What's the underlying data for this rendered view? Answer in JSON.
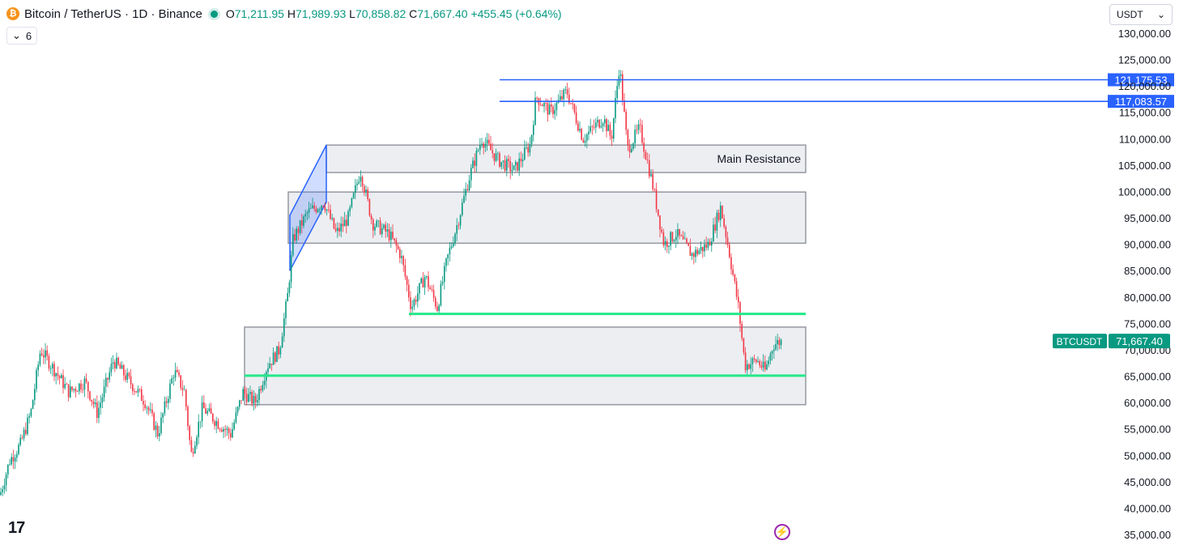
{
  "header": {
    "symbol": "Bitcoin / TetherUS · 1D · Binance",
    "coin_glyph": "₿",
    "open_label": "O",
    "open": "71,211.95",
    "high_label": "H",
    "high": "71,989.93",
    "low_label": "L",
    "low": "70,858.82",
    "close_label": "C",
    "close": "71,667.40",
    "change": "+455.45 (+0.64%)"
  },
  "indicators_toggle": {
    "count": "6"
  },
  "currency_select": {
    "value": "USDT"
  },
  "bolt_glyph": "⚡",
  "tv_logo": "17",
  "colors": {
    "up": "#089981",
    "down": "#f23645",
    "blue_line": "#2962ff",
    "green_line": "#22e88a",
    "zone_fill": "#eceef2",
    "zone_stroke": "#9598a1"
  },
  "chart_data": {
    "type": "candlestick",
    "symbol": "BTCUSDT",
    "interval": "1D",
    "ylim": [
      35000,
      130000
    ],
    "y_ticks": [
      35000,
      40000,
      45000,
      50000,
      55000,
      60000,
      65000,
      70000,
      75000,
      80000,
      85000,
      90000,
      95000,
      100000,
      105000,
      110000,
      115000,
      120000,
      125000,
      130000
    ],
    "y_tick_labels": [
      "35,000.00",
      "40,000.00",
      "45,000.00",
      "50,000.00",
      "55,000.00",
      "60,000.00",
      "65,000.00",
      "70,000.00",
      "75,000.00",
      "80,000.00",
      "85,000.00",
      "90,000.00",
      "95,000.00",
      "100,000.00",
      "105,000.00",
      "110,000.00",
      "115,000.00",
      "120,000.00",
      "125,000.00",
      "130,000.00"
    ],
    "close_path_keypoints": [
      [
        0,
        42500
      ],
      [
        12,
        49000
      ],
      [
        25,
        52000
      ],
      [
        38,
        58000
      ],
      [
        50,
        70000
      ],
      [
        68,
        66000
      ],
      [
        85,
        62000
      ],
      [
        105,
        64000
      ],
      [
        120,
        58000
      ],
      [
        140,
        68000
      ],
      [
        160,
        64000
      ],
      [
        180,
        60000
      ],
      [
        195,
        54000
      ],
      [
        215,
        66000
      ],
      [
        228,
        62000
      ],
      [
        236,
        50000
      ],
      [
        250,
        59000
      ],
      [
        270,
        56000
      ],
      [
        285,
        54000
      ],
      [
        300,
        62000
      ],
      [
        315,
        60000
      ],
      [
        330,
        67000
      ],
      [
        345,
        70000
      ],
      [
        355,
        80000
      ],
      [
        362,
        91000
      ],
      [
        380,
        96000
      ],
      [
        400,
        98000
      ],
      [
        415,
        92000
      ],
      [
        430,
        95000
      ],
      [
        445,
        104000
      ],
      [
        460,
        94000
      ],
      [
        480,
        92000
      ],
      [
        495,
        88000
      ],
      [
        508,
        78000
      ],
      [
        525,
        84000
      ],
      [
        540,
        78000
      ],
      [
        552,
        87000
      ],
      [
        565,
        94000
      ],
      [
        580,
        103000
      ],
      [
        595,
        110000
      ],
      [
        615,
        106000
      ],
      [
        635,
        104000
      ],
      [
        655,
        109000
      ],
      [
        662,
        118000
      ],
      [
        680,
        115000
      ],
      [
        700,
        119000
      ],
      [
        720,
        110000
      ],
      [
        745,
        114000
      ],
      [
        755,
        110000
      ],
      [
        765,
        124000
      ],
      [
        775,
        108000
      ],
      [
        790,
        112000
      ],
      [
        805,
        102000
      ],
      [
        820,
        90000
      ],
      [
        835,
        92000
      ],
      [
        855,
        88000
      ],
      [
        875,
        90000
      ],
      [
        890,
        97000
      ],
      [
        900,
        89000
      ],
      [
        912,
        78000
      ],
      [
        920,
        67000
      ],
      [
        935,
        68000
      ],
      [
        945,
        66000
      ],
      [
        955,
        71000
      ],
      [
        965,
        71667
      ]
    ],
    "last_price": 71667.4,
    "last_price_label": "71,667.40",
    "last_price_tag": "BTCUSDT",
    "horizontal_lines": [
      {
        "price": 121175.53,
        "label": "121,175.53",
        "color": "#2962ff"
      },
      {
        "price": 117083.57,
        "label": "117,083.57",
        "color": "#2962ff"
      },
      {
        "price": 76800,
        "color": "#22e88a"
      },
      {
        "price": 65100,
        "color": "#22e88a"
      }
    ],
    "zones": [
      {
        "name": "Main Resistance",
        "label": "Main Resistance",
        "top": 108800,
        "bottom": 103600
      },
      {
        "top": 99900,
        "bottom": 90200
      },
      {
        "top": 74300,
        "bottom": 59600
      }
    ],
    "channel": {
      "top": 108800,
      "bottom": 85000
    }
  }
}
